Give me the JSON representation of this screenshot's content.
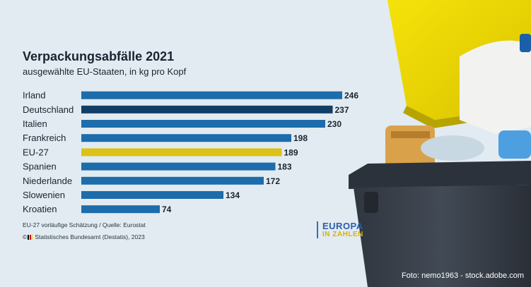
{
  "title": "Verpackungsabfälle 2021",
  "subtitle": "ausgewählte EU-Staaten, in kg pro Kopf",
  "footnote": "EU-27 vorläufige Schätzung / Quelle: Eurostat",
  "copyright": "© Statistisches Bundesamt (Destatis), 2023",
  "brand": {
    "line1": "EUROPA",
    "line2": "IN ZAHLEN"
  },
  "photo_credit": "Foto: nemo1963 - stock.adobe.com",
  "colors": {
    "bar_default": "#1d6cab",
    "bar_germany": "#0f3e67",
    "bar_eu": "#dcc116",
    "background": "#e1ebf1",
    "brand_blue": "#2a5ea8",
    "brand_yellow": "#d9b300"
  },
  "icons": [
    "flag-icon",
    "recycling-bin-illustration"
  ],
  "chart_data": {
    "type": "bar",
    "orientation": "horizontal",
    "title": "Verpackungsabfälle 2021",
    "subtitle": "ausgewählte EU-Staaten, in kg pro Kopf",
    "categories": [
      "Irland",
      "Deutschland",
      "Italien",
      "Frankreich",
      "EU-27",
      "Spanien",
      "Niederlande",
      "Slowenien",
      "Kroatien"
    ],
    "values": [
      246,
      237,
      230,
      198,
      189,
      183,
      172,
      134,
      74
    ],
    "highlight": {
      "Deutschland": "#0f3e67",
      "EU-27": "#dcc116"
    },
    "data_labels": true,
    "grid": false
  }
}
